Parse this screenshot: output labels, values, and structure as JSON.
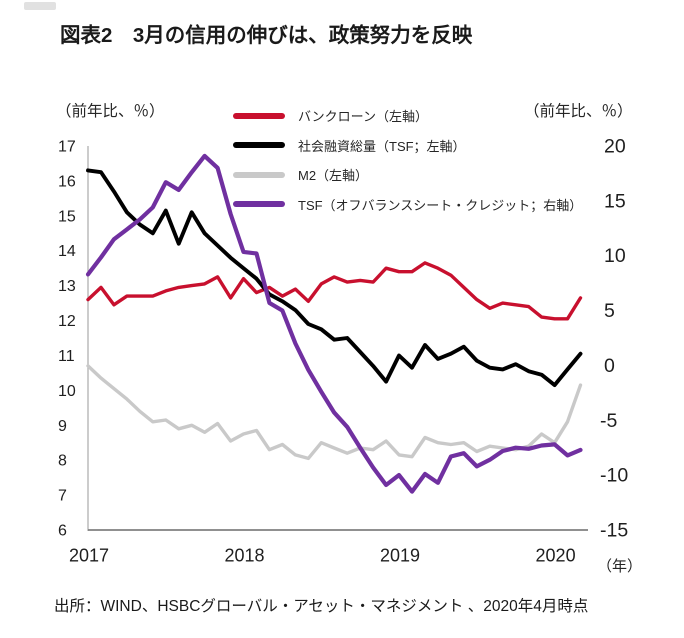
{
  "page": {
    "title": "図表2　3月の信用の伸びは、政策努力を反映",
    "source_note": "出所：WIND、HSBCグローバル・アセット・マネジメント 、2020年4月時点"
  },
  "chart_data": {
    "type": "line",
    "title": "図表2　3月の信用の伸びは、政策努力を反映",
    "x_start": "2017-01",
    "x_frequency": "monthly",
    "x_tick_labels": [
      "2017",
      "2018",
      "2019",
      "2020"
    ],
    "x_unit_label": "（年）",
    "grid": false,
    "legend_position": "top-inside",
    "left_axis": {
      "label": "（前年比、％）",
      "min": 6,
      "max": 17,
      "ticks": [
        17,
        16,
        15,
        14,
        13,
        12,
        11,
        10,
        9,
        8,
        7,
        6
      ]
    },
    "right_axis": {
      "label": "（前年比、％）",
      "min": -15,
      "max": 20,
      "ticks": [
        20,
        15,
        10,
        5,
        0,
        -5,
        -10,
        -15
      ]
    },
    "series": [
      {
        "name": "バンクローン（左軸）",
        "axis": "left",
        "color": "#c8102e",
        "values": [
          12.6,
          12.95,
          12.45,
          12.7,
          12.7,
          12.7,
          12.85,
          12.95,
          13.0,
          13.05,
          13.25,
          12.65,
          13.2,
          12.8,
          12.95,
          12.7,
          12.9,
          12.55,
          13.05,
          13.25,
          13.1,
          13.15,
          13.1,
          13.5,
          13.4,
          13.4,
          13.65,
          13.5,
          13.3,
          12.95,
          12.6,
          12.35,
          12.5,
          12.45,
          12.4,
          12.1,
          12.05,
          12.05,
          12.65
        ]
      },
      {
        "name": "社会融資総量（TSF；左軸）",
        "axis": "left",
        "color": "#000000",
        "values": [
          16.3,
          16.25,
          15.7,
          15.1,
          14.75,
          14.5,
          15.15,
          14.2,
          15.1,
          14.5,
          14.15,
          13.8,
          13.5,
          13.2,
          12.75,
          12.55,
          12.3,
          11.9,
          11.75,
          11.45,
          11.5,
          11.1,
          10.7,
          10.25,
          11.0,
          10.65,
          11.3,
          10.9,
          11.05,
          11.25,
          10.85,
          10.65,
          10.6,
          10.75,
          10.55,
          10.45,
          10.15,
          10.6,
          11.05
        ]
      },
      {
        "name": "M2（左軸）",
        "axis": "left",
        "color": "#c9c9c9",
        "values": [
          10.7,
          10.35,
          10.05,
          9.75,
          9.4,
          9.1,
          9.15,
          8.9,
          9.0,
          8.8,
          9.05,
          8.55,
          8.75,
          8.85,
          8.3,
          8.45,
          8.15,
          8.05,
          8.5,
          8.35,
          8.2,
          8.35,
          8.3,
          8.55,
          8.15,
          8.1,
          8.65,
          8.5,
          8.45,
          8.5,
          8.25,
          8.4,
          8.35,
          8.3,
          8.4,
          8.75,
          8.5,
          9.1,
          10.15
        ]
      },
      {
        "name": "TSF（オフバランスシート・クレジット；右軸）",
        "axis": "right",
        "color": "#7030a0",
        "values": [
          8.3,
          9.85,
          11.5,
          12.4,
          13.3,
          14.4,
          16.7,
          16.0,
          17.6,
          19.1,
          18.0,
          13.8,
          10.35,
          10.2,
          5.7,
          5.0,
          2.0,
          -0.4,
          -2.4,
          -4.3,
          -5.6,
          -7.5,
          -9.3,
          -10.9,
          -10.0,
          -11.5,
          -9.9,
          -10.7,
          -8.3,
          -8.0,
          -9.2,
          -8.6,
          -7.8,
          -7.5,
          -7.6,
          -7.3,
          -7.2,
          -8.2,
          -7.7
        ]
      }
    ]
  }
}
